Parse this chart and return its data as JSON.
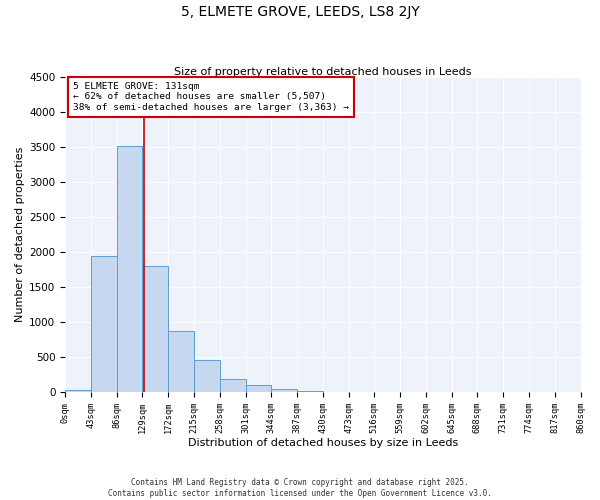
{
  "title": "5, ELMETE GROVE, LEEDS, LS8 2JY",
  "subtitle": "Size of property relative to detached houses in Leeds",
  "xlabel": "Distribution of detached houses by size in Leeds",
  "ylabel": "Number of detached properties",
  "bar_color": "#c5d8f0",
  "bar_edge_color": "#5a9fd4",
  "background_color": "#eef2fa",
  "grid_color": "#ffffff",
  "vline_x": 131,
  "vline_color": "#cc0000",
  "annotation_line1": "5 ELMETE GROVE: 131sqm",
  "annotation_line2": "← 62% of detached houses are smaller (5,507)",
  "annotation_line3": "38% of semi-detached houses are larger (3,363) →",
  "annotation_box_color": "#cc0000",
  "ylim": [
    0,
    4500
  ],
  "yticks": [
    0,
    500,
    1000,
    1500,
    2000,
    2500,
    3000,
    3500,
    4000,
    4500
  ],
  "bin_edges": [
    0,
    43,
    86,
    129,
    172,
    215,
    258,
    301,
    344,
    387,
    430,
    473,
    516,
    559,
    602,
    645,
    688,
    731,
    774,
    817,
    860
  ],
  "bin_labels": [
    "0sqm",
    "43sqm",
    "86sqm",
    "129sqm",
    "172sqm",
    "215sqm",
    "258sqm",
    "301sqm",
    "344sqm",
    "387sqm",
    "430sqm",
    "473sqm",
    "516sqm",
    "559sqm",
    "602sqm",
    "645sqm",
    "688sqm",
    "731sqm",
    "774sqm",
    "817sqm",
    "860sqm"
  ],
  "bar_heights": [
    30,
    1950,
    3520,
    1800,
    870,
    460,
    185,
    95,
    50,
    20,
    5,
    0,
    0,
    0,
    0,
    0,
    0,
    0,
    0,
    0
  ],
  "footnote1": "Contains HM Land Registry data © Crown copyright and database right 2025.",
  "footnote2": "Contains public sector information licensed under the Open Government Licence v3.0."
}
